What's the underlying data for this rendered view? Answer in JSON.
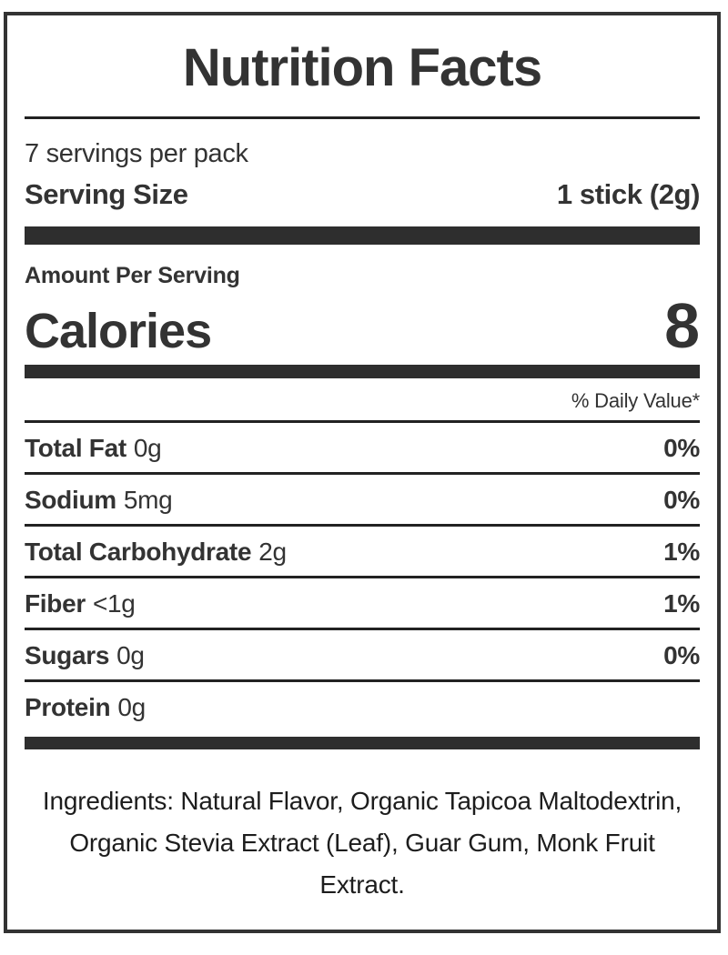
{
  "label": {
    "title": "Nutrition Facts",
    "servings_per_pack": "7 servings per pack",
    "serving_size": {
      "label": "Serving Size",
      "value": "1 stick (2g)"
    },
    "amount_per_serving": "Amount Per Serving",
    "calories": {
      "label": "Calories",
      "value": "8"
    },
    "daily_value_header": "% Daily Value*",
    "nutrients": [
      {
        "name": "Total Fat",
        "amount": "0g",
        "daily_value": "0%"
      },
      {
        "name": "Sodium",
        "amount": "5mg",
        "daily_value": "0%"
      },
      {
        "name": "Total Carbohydrate",
        "amount": "2g",
        "daily_value": "1%"
      },
      {
        "name": "Fiber",
        "amount": "<1g",
        "daily_value": "1%"
      },
      {
        "name": "Sugars",
        "amount": "0g",
        "daily_value": "0%"
      },
      {
        "name": "Protein",
        "amount": "0g",
        "daily_value": ""
      }
    ],
    "ingredients": "Ingredients: Natural Flavor, Organic Tapicoa Maltodextrin, Organic Stevia Extract (Leaf), Guar Gum, Monk Fruit Extract.",
    "colors": {
      "ink": "#333333",
      "bar": "#2e2e2e",
      "rule": "#222222",
      "ingredients_ink": "#1d1d1d",
      "background": "#ffffff"
    }
  }
}
